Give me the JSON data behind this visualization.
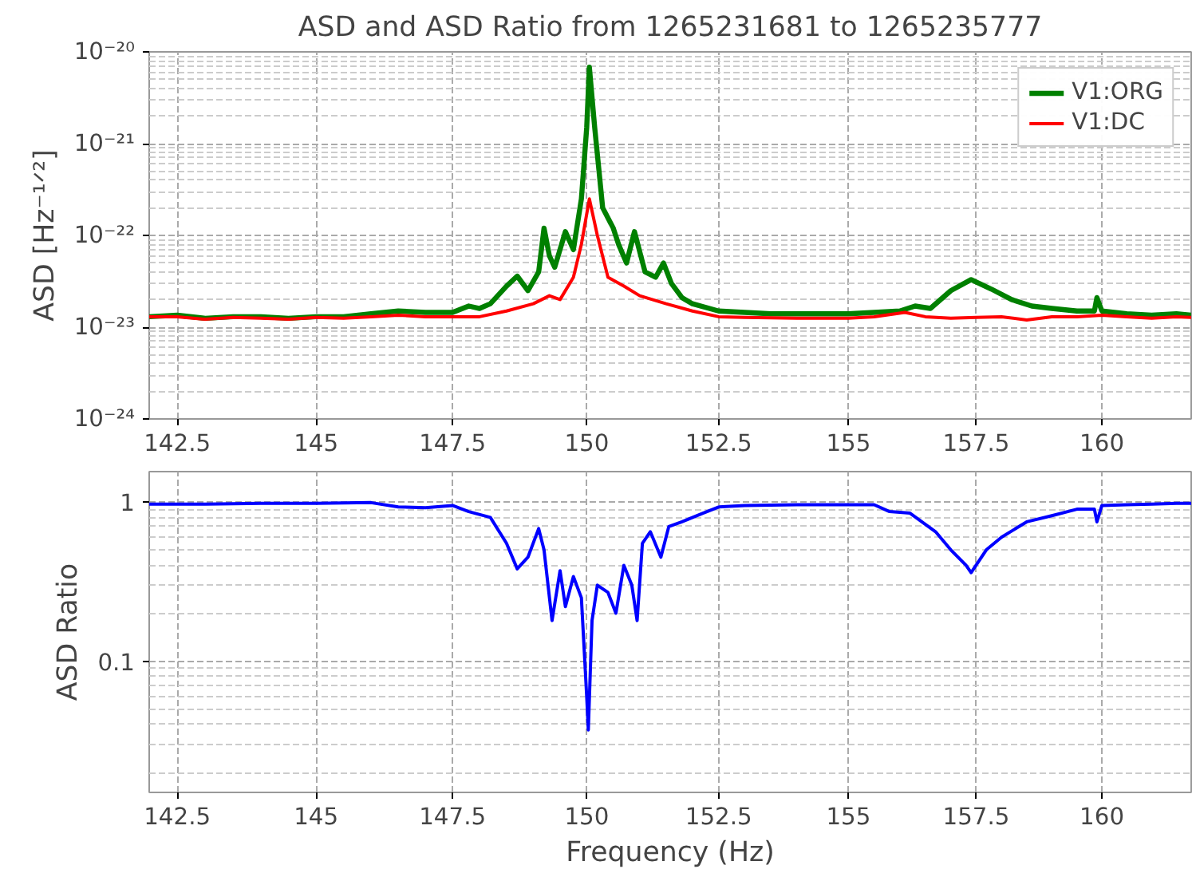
{
  "chart_data": [
    {
      "type": "line",
      "title": "ASD and ASD Ratio from 1265231681 to 1265235777",
      "ylabel": "ASD [Hz⁻¹ᐟ²]",
      "log": "xy",
      "grid": true,
      "legend": "top right",
      "xlim": [
        142,
        161.8
      ],
      "xticks": [
        142.5,
        145,
        147.5,
        150,
        152.5,
        155,
        157.5,
        160
      ],
      "ylim": [
        1e-24,
        1e-20
      ],
      "yticks": [
        {
          "value": 1e-24,
          "label": "10⁻²⁴"
        },
        {
          "value": 1e-23,
          "label": "10⁻²³"
        },
        {
          "value": 1e-22,
          "label": "10⁻²²"
        },
        {
          "value": 1e-21,
          "label": "10⁻²¹"
        },
        {
          "value": 1e-20,
          "label": "10⁻²⁰"
        }
      ],
      "series": [
        {
          "name": "V1:ORG",
          "color": "#008000",
          "x": [
            142.0,
            142.5,
            143,
            143.5,
            144,
            144.5,
            145,
            145.5,
            146,
            146.5,
            147,
            147.5,
            147.8,
            148.0,
            148.2,
            148.5,
            148.7,
            148.9,
            149.1,
            149.2,
            149.3,
            149.4,
            149.6,
            149.75,
            149.9,
            150.0,
            150.05,
            150.15,
            150.3,
            150.5,
            150.6,
            150.75,
            150.9,
            151.1,
            151.3,
            151.45,
            151.6,
            151.8,
            152,
            152.5,
            153,
            153.5,
            154,
            154.5,
            155,
            155.5,
            156,
            156.3,
            156.6,
            157,
            157.4,
            157.8,
            158.2,
            158.6,
            159,
            159.5,
            159.85,
            159.9,
            160,
            160.5,
            161,
            161.5,
            161.8
          ],
          "values": [
            1.3e-23,
            1.35e-23,
            1.25e-23,
            1.3e-23,
            1.3e-23,
            1.25e-23,
            1.3e-23,
            1.3e-23,
            1.4e-23,
            1.5e-23,
            1.45e-23,
            1.45e-23,
            1.7e-23,
            1.6e-23,
            1.8e-23,
            2.8e-23,
            3.6e-23,
            2.5e-23,
            4e-23,
            1.2e-22,
            6e-23,
            4.5e-23,
            1.1e-22,
            7e-23,
            2.5e-22,
            1.5e-21,
            6.8e-21,
            1.5e-21,
            2e-22,
            1.2e-22,
            8e-23,
            5e-23,
            1.1e-22,
            4e-23,
            3.5e-23,
            5e-23,
            3e-23,
            2.1e-23,
            1.8e-23,
            1.5e-23,
            1.45e-23,
            1.4e-23,
            1.4e-23,
            1.4e-23,
            1.4e-23,
            1.45e-23,
            1.5e-23,
            1.7e-23,
            1.6e-23,
            2.5e-23,
            3.3e-23,
            2.6e-23,
            2e-23,
            1.7e-23,
            1.6e-23,
            1.5e-23,
            1.5e-23,
            2.1e-23,
            1.5e-23,
            1.4e-23,
            1.35e-23,
            1.4e-23,
            1.35e-23
          ]
        },
        {
          "name": "V1:DC",
          "color": "#ff0000",
          "x": [
            142.0,
            142.5,
            143,
            143.5,
            144,
            144.5,
            145,
            145.5,
            146,
            146.5,
            147,
            147.5,
            148,
            148.5,
            149,
            149.3,
            149.5,
            149.75,
            149.9,
            150.05,
            150.2,
            150.4,
            150.7,
            151,
            151.5,
            152,
            152.5,
            153,
            154,
            155,
            155.5,
            156.1,
            156.5,
            157,
            157.5,
            158,
            158.5,
            159,
            159.5,
            160,
            160.5,
            161,
            161.5,
            161.8
          ],
          "values": [
            1.3e-23,
            1.3e-23,
            1.22e-23,
            1.28e-23,
            1.25e-23,
            1.22e-23,
            1.28e-23,
            1.25e-23,
            1.3e-23,
            1.35e-23,
            1.3e-23,
            1.3e-23,
            1.3e-23,
            1.5e-23,
            1.8e-23,
            2.2e-23,
            2e-23,
            3.5e-23,
            8e-23,
            2.5e-22,
            1e-22,
            3.5e-23,
            2.8e-23,
            2.2e-23,
            1.8e-23,
            1.5e-23,
            1.3e-23,
            1.28e-23,
            1.25e-23,
            1.25e-23,
            1.3e-23,
            1.45e-23,
            1.3e-23,
            1.25e-23,
            1.28e-23,
            1.3e-23,
            1.2e-23,
            1.3e-23,
            1.3e-23,
            1.35e-23,
            1.3e-23,
            1.25e-23,
            1.3e-23,
            1.28e-23
          ]
        }
      ]
    },
    {
      "type": "line",
      "xlabel": "Frequency (Hz)",
      "ylabel": "ASD Ratio",
      "log": "xy",
      "grid": true,
      "xlim": [
        142,
        161.8
      ],
      "xticks": [
        142.5,
        145,
        147.5,
        150,
        152.5,
        155,
        157.5,
        160
      ],
      "ylim": [
        0.015,
        1.55
      ],
      "yticks": [
        0.1,
        1
      ],
      "series": [
        {
          "color": "#0000ff",
          "x": [
            142,
            143,
            144,
            145,
            146,
            146.5,
            147,
            147.5,
            147.8,
            148.2,
            148.5,
            148.7,
            148.9,
            149.1,
            149.2,
            149.35,
            149.5,
            149.6,
            149.75,
            149.9,
            150.0,
            150.03,
            150.1,
            150.2,
            150.4,
            150.55,
            150.7,
            150.85,
            150.95,
            151.05,
            151.2,
            151.4,
            151.55,
            151.8,
            152.2,
            152.5,
            153,
            154,
            155,
            155.5,
            155.8,
            156.2,
            156.7,
            157,
            157.3,
            157.4,
            157.7,
            158,
            158.5,
            159,
            159.5,
            159.85,
            159.9,
            160,
            160.5,
            161,
            161.5,
            161.8
          ],
          "values": [
            0.97,
            0.97,
            0.98,
            0.98,
            0.99,
            0.93,
            0.92,
            0.95,
            0.87,
            0.8,
            0.55,
            0.38,
            0.45,
            0.68,
            0.5,
            0.18,
            0.37,
            0.22,
            0.34,
            0.25,
            0.06,
            0.037,
            0.18,
            0.3,
            0.27,
            0.2,
            0.4,
            0.3,
            0.18,
            0.55,
            0.65,
            0.45,
            0.7,
            0.75,
            0.85,
            0.93,
            0.95,
            0.96,
            0.96,
            0.96,
            0.87,
            0.85,
            0.65,
            0.5,
            0.4,
            0.36,
            0.5,
            0.6,
            0.75,
            0.82,
            0.9,
            0.9,
            0.75,
            0.95,
            0.96,
            0.97,
            0.98,
            0.98
          ]
        }
      ]
    }
  ]
}
